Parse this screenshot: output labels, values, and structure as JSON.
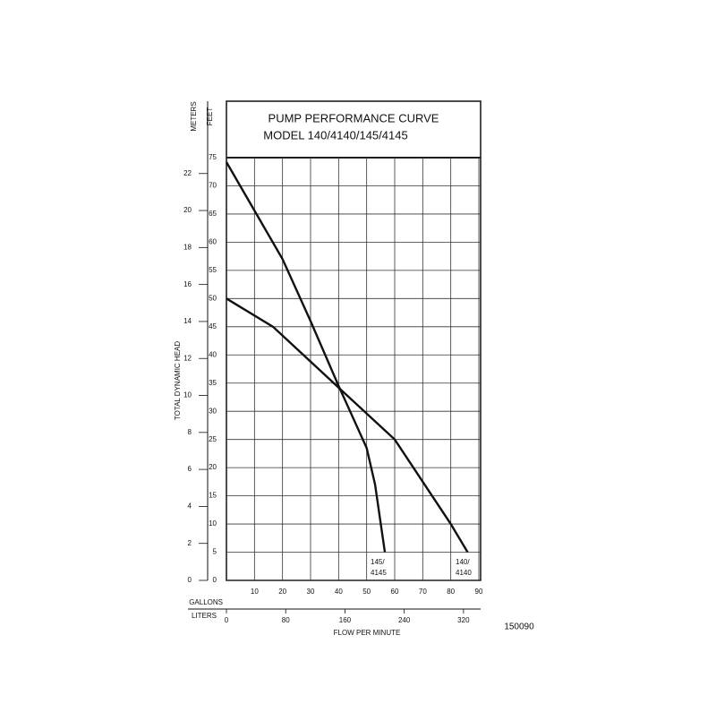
{
  "chart_data": {
    "type": "line",
    "title": "PUMP PERFORMANCE CURVE",
    "subtitle": "MODEL 140/4140/145/4145",
    "y_label": "FEET",
    "y2_label": "METERS",
    "axis_title": "TOTAL DYNAMIC HEAD",
    "x_label": "GALLONS",
    "x2_label": "LITERS",
    "x_title": "FLOW PER MINUTE",
    "code": "150090",
    "xlim": [
      0,
      90
    ],
    "xticks": [
      10,
      20,
      30,
      40,
      50,
      60,
      70,
      80,
      90
    ],
    "x2lim": [
      0,
      340.7
    ],
    "x2ticks": [
      0,
      80,
      160,
      240,
      320
    ],
    "ylim": [
      0,
      75
    ],
    "yticks": [
      0,
      5,
      10,
      15,
      20,
      25,
      30,
      35,
      40,
      45,
      50,
      55,
      60,
      65,
      70,
      75
    ],
    "y2lim": [
      0,
      22.86
    ],
    "y2ticks": [
      0,
      2,
      4,
      6,
      8,
      10,
      12,
      14,
      16,
      18,
      20,
      22
    ],
    "grid": true,
    "color": "#111111",
    "series": [
      {
        "x": [
          0,
          16.6,
          40,
          60,
          80,
          86
        ],
        "values": [
          50,
          45,
          34.2,
          25,
          10,
          5
        ]
      },
      {
        "x": [
          0,
          10,
          20,
          30,
          40,
          50,
          53,
          56.5
        ],
        "values": [
          74.2,
          65.6,
          57,
          46,
          34.5,
          23.5,
          17,
          5
        ]
      }
    ],
    "annotations": [
      [
        "145/",
        "4145"
      ],
      [
        "140/",
        "4140"
      ]
    ]
  }
}
